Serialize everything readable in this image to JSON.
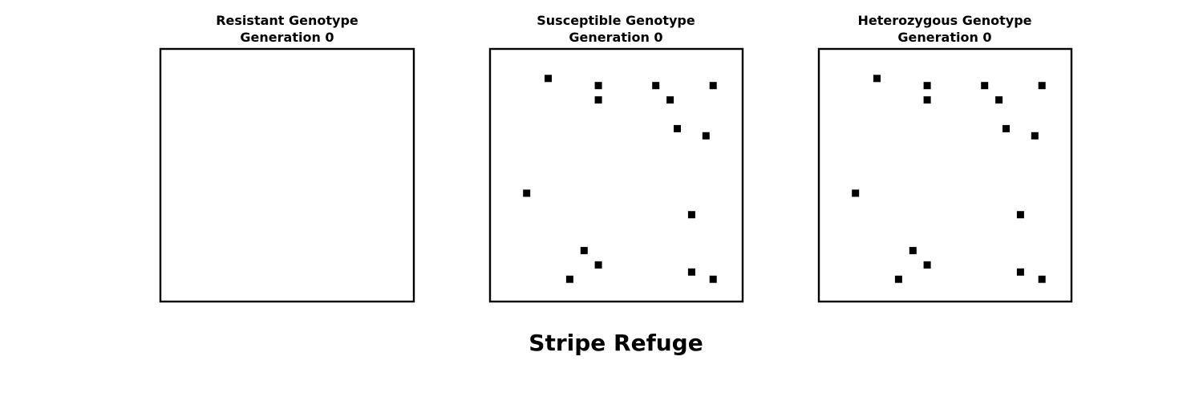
{
  "figure": {
    "suptitle": "Stripe Refuge"
  },
  "chart_data": [
    {
      "type": "scatter",
      "title": "Resistant Genotype",
      "subtitle": "Generation 0",
      "xlim": [
        0,
        35
      ],
      "ylim": [
        0,
        35
      ],
      "grid": false,
      "color": "#000000",
      "points": []
    },
    {
      "type": "scatter",
      "title": "Susceptible Genotype",
      "subtitle": "Generation 0",
      "xlim": [
        0,
        35
      ],
      "ylim": [
        0,
        35
      ],
      "grid": false,
      "color": "#000000",
      "points": [
        [
          8,
          31
        ],
        [
          15,
          30
        ],
        [
          23,
          30
        ],
        [
          31,
          30
        ],
        [
          15,
          28
        ],
        [
          25,
          28
        ],
        [
          26,
          24
        ],
        [
          30,
          23
        ],
        [
          5,
          15
        ],
        [
          28,
          12
        ],
        [
          13,
          7
        ],
        [
          15,
          5
        ],
        [
          28,
          4
        ],
        [
          11,
          3
        ],
        [
          31,
          3
        ]
      ]
    },
    {
      "type": "scatter",
      "title": "Heterozygous Genotype",
      "subtitle": "Generation 0",
      "xlim": [
        0,
        35
      ],
      "ylim": [
        0,
        35
      ],
      "grid": false,
      "color": "#000000",
      "points": [
        [
          8,
          31
        ],
        [
          15,
          30
        ],
        [
          23,
          30
        ],
        [
          31,
          30
        ],
        [
          15,
          28
        ],
        [
          25,
          28
        ],
        [
          26,
          24
        ],
        [
          30,
          23
        ],
        [
          5,
          15
        ],
        [
          28,
          12
        ],
        [
          13,
          7
        ],
        [
          15,
          5
        ],
        [
          28,
          4
        ],
        [
          11,
          3
        ],
        [
          31,
          3
        ]
      ]
    }
  ]
}
